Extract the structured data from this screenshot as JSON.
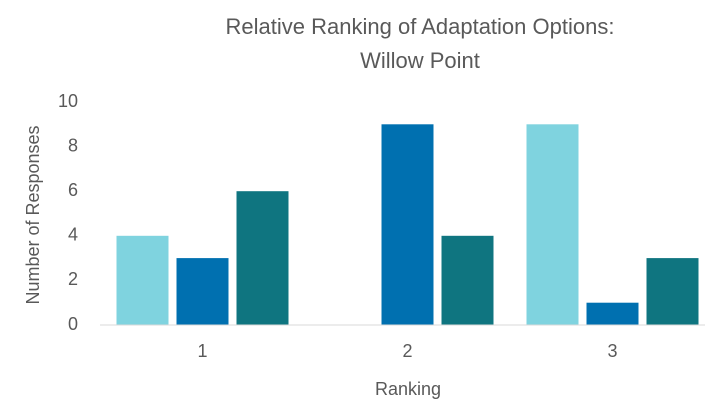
{
  "chart_data": {
    "type": "bar",
    "title": [
      "Relative Ranking of Adaptation Options:",
      "Willow Point"
    ],
    "x_label": "Ranking",
    "y_label": "Number of Responses",
    "categories": [
      "1",
      "2",
      "3"
    ],
    "series": [
      {
        "color": "#7fd3df",
        "values": [
          4,
          0,
          9
        ]
      },
      {
        "color": "#0070b0",
        "values": [
          3,
          9,
          1
        ]
      },
      {
        "color": "#0f7580",
        "values": [
          6,
          4,
          3
        ]
      }
    ],
    "ylim": [
      0,
      10
    ],
    "yticks": [
      0,
      2,
      4,
      6,
      8,
      10
    ],
    "grid": false
  }
}
